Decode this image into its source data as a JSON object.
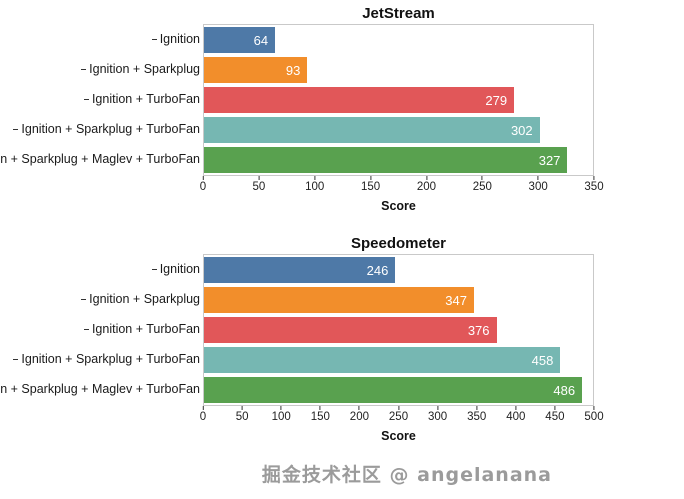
{
  "watermark": {
    "text": "掘金技术社区 @ angelanana"
  },
  "chart_data": [
    {
      "type": "bar",
      "orientation": "horizontal",
      "title": "JetStream",
      "xlabel": "Score",
      "categories": [
        "Ignition",
        "Ignition + Sparkplug",
        "Ignition + TurboFan",
        "Ignition + Sparkplug + TurboFan",
        "Ignition + Sparkplug + Maglev + TurboFan"
      ],
      "values": [
        64,
        93,
        279,
        302,
        327
      ],
      "colors": [
        "#4E79A7",
        "#F28E2B",
        "#E15759",
        "#76B7B2",
        "#59A14F"
      ],
      "xlim": [
        0,
        350
      ],
      "tick_step": 50,
      "grid": false,
      "legend": "none",
      "value_labels": "inside-end-white"
    },
    {
      "type": "bar",
      "orientation": "horizontal",
      "title": "Speedometer",
      "xlabel": "Score",
      "categories": [
        "Ignition",
        "Ignition + Sparkplug",
        "Ignition + TurboFan",
        "Ignition + Sparkplug + TurboFan",
        "Ignition + Sparkplug + Maglev + TurboFan"
      ],
      "values": [
        246,
        347,
        376,
        458,
        486
      ],
      "colors": [
        "#4E79A7",
        "#F28E2B",
        "#E15759",
        "#76B7B2",
        "#59A14F"
      ],
      "xlim": [
        0,
        500
      ],
      "tick_step": 50,
      "grid": false,
      "legend": "none",
      "value_labels": "inside-end-white"
    }
  ]
}
